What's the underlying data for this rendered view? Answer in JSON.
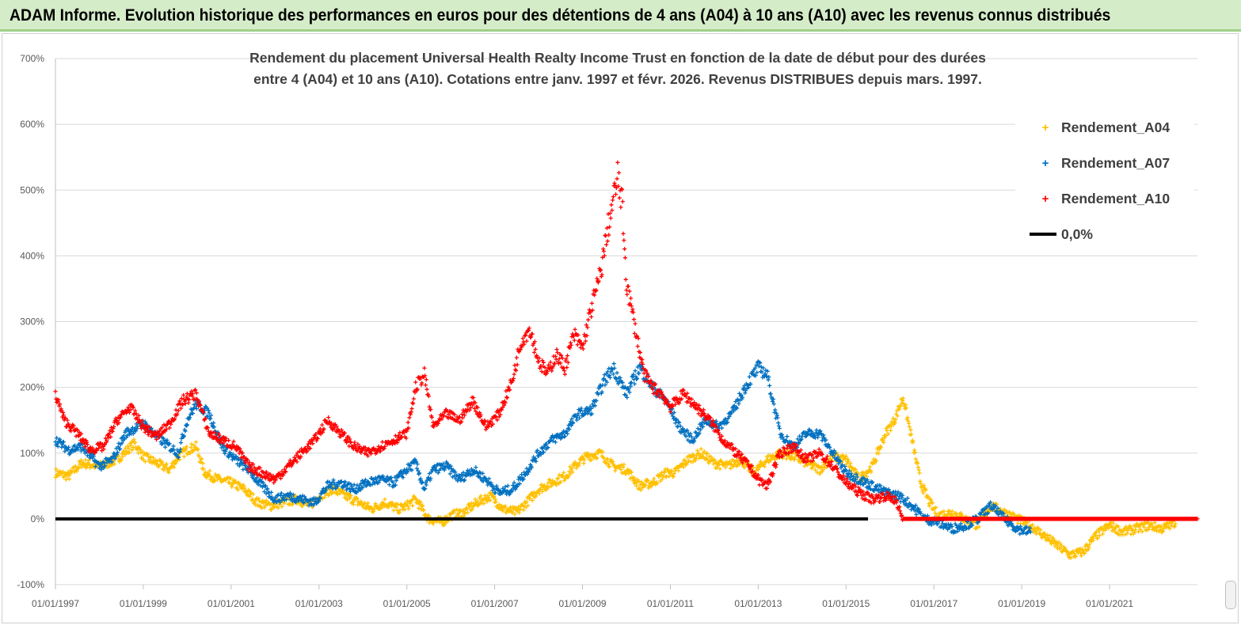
{
  "header": {
    "title": "ADAM Informe. Evolution historique des performances en euros pour des détentions de 4 ans (A04) à 10 ans (A10) avec les revenus connus distribués"
  },
  "chart_data": {
    "type": "scatter",
    "title_line1": "Rendement du placement Universal Health Realty Income Trust en fonction de la date de début pour des durées",
    "title_line2": "entre 4 (A04) et 10 ans (A10).  Cotations entre janv. 1997 et févr. 2026. Revenus DISTRIBUES depuis mars. 1997.",
    "xlabel": "",
    "ylabel": "",
    "x_range": [
      1997.0,
      2023.0
    ],
    "ylim": [
      -100,
      700
    ],
    "y_ticks": [
      700,
      600,
      500,
      400,
      300,
      200,
      100,
      0,
      -100
    ],
    "y_tick_labels": [
      "700%",
      "600%",
      "500%",
      "400%",
      "300%",
      "200%",
      "100%",
      "0%",
      "-100%"
    ],
    "x_ticks": [
      1997,
      1999,
      2001,
      2003,
      2005,
      2007,
      2009,
      2011,
      2013,
      2015,
      2017,
      2019,
      2021
    ],
    "x_tick_labels": [
      "01/01/1997",
      "01/01/1999",
      "01/01/2001",
      "01/01/2003",
      "01/01/2005",
      "01/01/2007",
      "01/01/2009",
      "01/01/2011",
      "01/01/2013",
      "01/01/2015",
      "01/01/2017",
      "01/01/2019",
      "01/01/2021"
    ],
    "legend_position": "top-right",
    "series": [
      {
        "name": "Rendement_A04",
        "color": "#ffc000",
        "marker": "+",
        "x": [
          1997.0,
          1997.3,
          1997.6,
          1998.0,
          1998.4,
          1998.8,
          1999.0,
          1999.3,
          1999.6,
          1999.8,
          2000.0,
          2000.2,
          2000.4,
          2000.7,
          2001.0,
          2001.3,
          2001.6,
          2001.9,
          2002.2,
          2002.5,
          2002.8,
          2003.0,
          2003.3,
          2003.6,
          2003.9,
          2004.2,
          2004.5,
          2004.8,
          2005.0,
          2005.2,
          2005.5,
          2005.8,
          2006.0,
          2006.3,
          2006.6,
          2006.9,
          2007.2,
          2007.5,
          2007.8,
          2008.0,
          2008.3,
          2008.6,
          2008.9,
          2009.1,
          2009.4,
          2009.7,
          2010.0,
          2010.3,
          2010.6,
          2010.9,
          2011.1,
          2011.4,
          2011.7,
          2012.0,
          2012.3,
          2012.6,
          2012.9,
          2013.2,
          2013.5,
          2013.8,
          2014.1,
          2014.4,
          2014.7,
          2015.0,
          2015.3,
          2015.6,
          2015.9,
          2016.1,
          2016.3,
          2016.5,
          2016.7,
          2016.9,
          2017.1,
          2017.4,
          2017.7,
          2018.0,
          2018.3,
          2018.6,
          2018.9,
          2019.2,
          2019.5,
          2019.8,
          2020.1,
          2020.4,
          2020.7,
          2021.0,
          2021.3,
          2021.6,
          2021.9,
          2022.2,
          2022.5
        ],
        "values": [
          70,
          65,
          85,
          80,
          90,
          115,
          95,
          85,
          75,
          95,
          105,
          110,
          70,
          60,
          55,
          45,
          25,
          20,
          25,
          30,
          20,
          35,
          45,
          35,
          25,
          15,
          25,
          15,
          20,
          30,
          0,
          -5,
          5,
          10,
          25,
          35,
          15,
          10,
          30,
          45,
          55,
          65,
          85,
          95,
          100,
          80,
          75,
          50,
          55,
          70,
          70,
          90,
          100,
          85,
          80,
          90,
          70,
          90,
          100,
          95,
          85,
          75,
          95,
          90,
          60,
          80,
          130,
          150,
          185,
          120,
          55,
          25,
          5,
          10,
          0,
          -10,
          20,
          10,
          0,
          -10,
          -25,
          -40,
          -55,
          -50,
          -25,
          -10,
          -20,
          -15,
          -10,
          -15,
          -5
        ]
      },
      {
        "name": "Rendement_A07",
        "color": "#0070c0",
        "marker": "+",
        "x": [
          1997.0,
          1997.3,
          1997.6,
          1998.0,
          1998.3,
          1998.6,
          1999.0,
          1999.4,
          1999.8,
          2000.0,
          2000.2,
          2000.5,
          2000.8,
          2001.1,
          2001.4,
          2001.7,
          2002.0,
          2002.3,
          2002.6,
          2002.9,
          2003.2,
          2003.5,
          2003.8,
          2004.1,
          2004.4,
          2004.7,
          2005.0,
          2005.2,
          2005.4,
          2005.6,
          2005.9,
          2006.2,
          2006.5,
          2006.8,
          2007.1,
          2007.4,
          2007.7,
          2008.0,
          2008.3,
          2008.6,
          2008.9,
          2009.2,
          2009.5,
          2009.7,
          2010.0,
          2010.3,
          2010.6,
          2010.9,
          2011.2,
          2011.5,
          2011.8,
          2012.1,
          2012.4,
          2012.7,
          2013.0,
          2013.2,
          2013.5,
          2013.8,
          2014.1,
          2014.4,
          2014.7,
          2015.0,
          2015.3,
          2015.6,
          2015.9,
          2016.2,
          2016.5,
          2016.8,
          2017.1,
          2017.4,
          2017.7,
          2018.0,
          2018.3,
          2018.6,
          2018.9,
          2019.2
        ],
        "values": [
          120,
          105,
          110,
          80,
          90,
          130,
          145,
          120,
          100,
          150,
          175,
          160,
          110,
          90,
          75,
          50,
          30,
          35,
          30,
          25,
          50,
          55,
          45,
          55,
          60,
          55,
          75,
          85,
          45,
          75,
          80,
          60,
          75,
          60,
          40,
          45,
          70,
          100,
          120,
          130,
          160,
          165,
          210,
          230,
          190,
          230,
          200,
          180,
          140,
          120,
          150,
          140,
          160,
          200,
          230,
          220,
          130,
          110,
          130,
          130,
          100,
          70,
          60,
          50,
          40,
          35,
          20,
          0,
          -5,
          -15,
          -10,
          0,
          20,
          0,
          -15,
          -20
        ]
      },
      {
        "name": "Rendement_A10",
        "color": "#ff0000",
        "marker": "+",
        "x": [
          1997.0,
          1997.2,
          1997.5,
          1997.8,
          1998.1,
          1998.4,
          1998.7,
          1999.0,
          1999.3,
          1999.6,
          1999.9,
          2000.2,
          2000.5,
          2000.8,
          2001.1,
          2001.4,
          2001.7,
          2002.0,
          2002.3,
          2002.6,
          2002.9,
          2003.2,
          2003.5,
          2003.8,
          2004.1,
          2004.4,
          2004.7,
          2005.0,
          2005.2,
          2005.4,
          2005.6,
          2005.9,
          2006.2,
          2006.5,
          2006.8,
          2007.1,
          2007.4,
          2007.6,
          2007.8,
          2008.0,
          2008.2,
          2008.4,
          2008.6,
          2008.8,
          2009.0,
          2009.2,
          2009.4,
          2009.6,
          2009.8,
          2009.9,
          2010.0,
          2010.2,
          2010.4,
          2010.6,
          2010.8,
          2011.0,
          2011.3,
          2011.6,
          2011.9,
          2012.2,
          2012.5,
          2012.8,
          2013.0,
          2013.2,
          2013.5,
          2013.8,
          2014.1,
          2014.4,
          2014.7,
          2015.0,
          2015.3,
          2015.6,
          2015.9,
          2016.1,
          2016.3,
          2017.0,
          2018.0,
          2019.0,
          2020.0,
          2021.0,
          2022.0,
          2023.0
        ],
        "values": [
          190,
          150,
          130,
          105,
          110,
          150,
          170,
          140,
          125,
          145,
          180,
          190,
          130,
          120,
          110,
          80,
          70,
          60,
          80,
          100,
          120,
          150,
          130,
          110,
          100,
          110,
          120,
          130,
          200,
          220,
          140,
          160,
          150,
          180,
          140,
          160,
          210,
          270,
          290,
          240,
          220,
          250,
          230,
          280,
          260,
          320,
          370,
          450,
          520,
          480,
          360,
          290,
          220,
          200,
          190,
          170,
          190,
          170,
          150,
          120,
          100,
          80,
          60,
          50,
          100,
          110,
          90,
          100,
          80,
          55,
          40,
          30,
          35,
          30,
          0,
          0,
          0,
          0,
          0,
          0,
          0,
          0
        ]
      },
      {
        "name": "0,0%",
        "color": "#000000",
        "type": "line",
        "x": [
          1997.0,
          2015.5
        ],
        "values": [
          0,
          0
        ]
      }
    ]
  }
}
